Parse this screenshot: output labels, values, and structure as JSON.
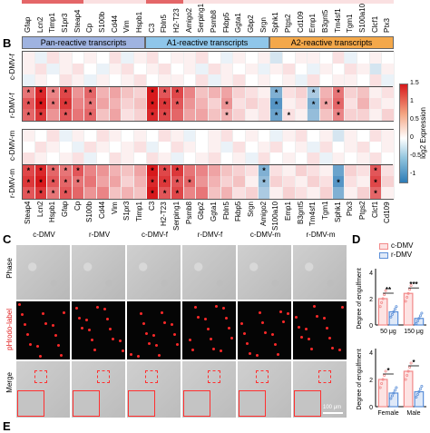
{
  "panel_letters": {
    "b": "B",
    "c": "C",
    "d": "D",
    "e": "E"
  },
  "top_genes": [
    "Gfap",
    "Lcn2",
    "Timp1",
    "S1pr3",
    "Steap4",
    "Cp",
    "S100b",
    "Cd44",
    "Vim",
    "Hspb1",
    "C3",
    "Fbln5",
    "H2-T23",
    "Amigo2",
    "Serping1",
    "Psmb8",
    "Fkbp5",
    "Ggta1",
    "Gbp2",
    "Srgn",
    "Sphk1",
    "Ptgs2",
    "Cd109",
    "Emp1",
    "B3gnt5",
    "Tm4sf1",
    "Tgm1",
    "S100a10",
    "Clcf1",
    "Ptx3"
  ],
  "groups": [
    {
      "label": "Pan-reactive transcripts",
      "color": "#9fb3e0"
    },
    {
      "label": "A1-reactive transcripts",
      "color": "#8fc6ea"
    },
    {
      "label": "A2-reactive transcripts",
      "color": "#f4a84a"
    }
  ],
  "row_labels": {
    "c_dmv_f": "c-DMV-f",
    "r_dmv_f": "r-DMV-f",
    "c_dmv_m": "c-DMV-m",
    "r_dmv_m": "r-DMV-m"
  },
  "bottom_genes": [
    "Steap4",
    "Lcn2",
    "Hspb1",
    "Gfap",
    "Cp",
    "S100b",
    "Cd44",
    "Vim",
    "S1pr3",
    "Timp1",
    "C3",
    "H2-T23",
    "Serping1",
    "Psmb8",
    "Gbp2",
    "Ggta1",
    "Fbln5",
    "Fkbp5",
    "Srgn",
    "Amigo2",
    "S100a10",
    "Emp1",
    "B3gnt5",
    "Tm4sf1",
    "Tgm1",
    "Sphk1",
    "Ptx3",
    "Ptgs2",
    "Clcf1",
    "Cd109"
  ],
  "colorbar": {
    "title": "log2 Expression",
    "ticks": [
      "1.5",
      "1",
      "0.5",
      "0",
      "-0.5",
      "-1"
    ]
  },
  "star": "*",
  "heatmap_f": [
    [
      0.1,
      -0.1,
      0.2,
      0.1,
      0.0,
      0.1,
      0.0,
      0.2,
      -0.1,
      0.1,
      0.2,
      0.0,
      0.1,
      0.1,
      0.2,
      0.0,
      -0.1,
      0.1,
      0.0,
      0.1,
      -0.2,
      0.0,
      0.1,
      0.1,
      0.0,
      0.2,
      -0.1,
      0.0,
      0.1,
      0.0
    ],
    [
      0.1,
      0.2,
      -0.1,
      0.1,
      0.2,
      0.0,
      -0.1,
      0.1,
      0.2,
      0.0,
      0.1,
      0.2,
      0.0,
      0.1,
      -0.1,
      0.2,
      0.1,
      0.0,
      0.1,
      -0.1,
      0.1,
      0.2,
      0.0,
      -0.1,
      0.1,
      0.0,
      0.2,
      0.1,
      -0.2,
      0.1
    ],
    [
      -0.1,
      0.1,
      0.0,
      0.2,
      0.1,
      -0.1,
      0.1,
      0.0,
      0.1,
      0.2,
      0.0,
      0.1,
      0.1,
      0.0,
      0.2,
      -0.1,
      0.1,
      0.2,
      0.0,
      0.1,
      0.0,
      0.1,
      -0.1,
      0.2,
      0.0,
      0.1,
      0.1,
      0.0,
      0.2,
      -0.1
    ],
    [
      0.9,
      1.4,
      0.8,
      1.2,
      0.7,
      1.0,
      0.5,
      0.6,
      0.4,
      0.3,
      1.5,
      1.1,
      1.2,
      0.8,
      0.4,
      0.5,
      0.6,
      0.3,
      0.2,
      0.1,
      -0.6,
      0.2,
      0.3,
      -0.4,
      0.5,
      0.9,
      0.3,
      0.4,
      0.1,
      0.2
    ],
    [
      1.1,
      1.5,
      0.9,
      1.3,
      0.8,
      0.9,
      0.6,
      0.5,
      0.3,
      0.4,
      1.5,
      1.3,
      1.1,
      0.7,
      0.5,
      0.3,
      0.7,
      0.2,
      0.3,
      0.2,
      -0.8,
      0.1,
      0.2,
      -0.6,
      0.6,
      1.0,
      0.2,
      0.5,
      0.2,
      0.1
    ],
    [
      1.0,
      1.3,
      0.7,
      1.1,
      0.9,
      1.0,
      0.4,
      0.6,
      0.2,
      0.3,
      1.4,
      1.2,
      1.0,
      0.6,
      0.6,
      0.4,
      0.5,
      0.3,
      0.1,
      0.2,
      -0.7,
      0.2,
      0.1,
      -0.5,
      0.4,
      0.8,
      0.3,
      0.3,
      0.1,
      0.3
    ]
  ],
  "stars_f": [
    [
      3,
      0
    ],
    [
      3,
      1
    ],
    [
      3,
      2
    ],
    [
      3,
      3
    ],
    [
      3,
      5
    ],
    [
      3,
      10
    ],
    [
      3,
      11
    ],
    [
      3,
      12
    ],
    [
      3,
      20
    ],
    [
      3,
      23
    ],
    [
      3,
      25
    ],
    [
      4,
      0
    ],
    [
      4,
      1
    ],
    [
      4,
      2
    ],
    [
      4,
      3
    ],
    [
      4,
      5
    ],
    [
      4,
      10
    ],
    [
      4,
      11
    ],
    [
      4,
      12
    ],
    [
      4,
      16
    ],
    [
      4,
      20
    ],
    [
      4,
      23
    ],
    [
      4,
      24
    ],
    [
      4,
      25
    ],
    [
      5,
      0
    ],
    [
      5,
      1
    ],
    [
      5,
      3
    ],
    [
      5,
      5
    ],
    [
      5,
      10
    ],
    [
      5,
      11
    ],
    [
      5,
      16
    ],
    [
      5,
      20
    ],
    [
      5,
      21
    ],
    [
      5,
      25
    ]
  ],
  "heatmap_m": [
    [
      0.1,
      0.0,
      0.2,
      -0.1,
      0.1,
      0.0,
      0.2,
      0.1,
      0.0,
      0.1,
      0.0,
      0.2,
      0.1,
      -0.1,
      0.0,
      0.1,
      0.2,
      0.0,
      0.1,
      0.0,
      -0.1,
      0.1,
      0.2,
      0.0,
      0.1,
      -0.2,
      0.1,
      0.0,
      0.2,
      0.1
    ],
    [
      0.0,
      0.2,
      0.1,
      0.0,
      -0.1,
      0.2,
      0.1,
      0.0,
      0.1,
      0.2,
      -0.1,
      0.0,
      0.2,
      0.1,
      0.0,
      0.1,
      -0.1,
      0.2,
      0.0,
      0.1,
      0.2,
      0.0,
      0.1,
      -0.1,
      0.2,
      0.0,
      0.1,
      0.2,
      0.0,
      0.1
    ],
    [
      0.2,
      0.1,
      0.0,
      0.1,
      0.2,
      -0.1,
      0.0,
      0.2,
      0.1,
      0.0,
      0.2,
      0.1,
      -0.1,
      0.0,
      0.1,
      0.2,
      0.0,
      0.1,
      -0.1,
      0.2,
      0.0,
      0.1,
      0.0,
      0.2,
      -0.1,
      0.1,
      0.0,
      0.1,
      0.2,
      0.0
    ],
    [
      1.2,
      1.4,
      1.0,
      0.9,
      1.1,
      0.8,
      0.7,
      0.5,
      0.4,
      0.6,
      1.5,
      1.2,
      1.3,
      0.9,
      0.8,
      0.6,
      0.4,
      0.3,
      0.2,
      -0.6,
      0.2,
      0.1,
      0.3,
      0.2,
      0.1,
      -0.7,
      0.3,
      0.2,
      1.1,
      0.2
    ],
    [
      1.3,
      1.5,
      1.1,
      1.0,
      0.9,
      0.9,
      0.6,
      0.6,
      0.3,
      0.5,
      1.4,
      1.3,
      1.1,
      1.0,
      0.7,
      0.5,
      0.3,
      0.4,
      0.1,
      -0.5,
      0.3,
      0.2,
      0.1,
      0.3,
      0.2,
      -0.8,
      0.2,
      0.1,
      1.2,
      0.3
    ],
    [
      1.1,
      1.3,
      0.9,
      1.1,
      1.0,
      0.7,
      0.8,
      0.4,
      0.5,
      0.4,
      1.5,
      1.1,
      1.2,
      0.8,
      0.9,
      0.4,
      0.5,
      0.2,
      0.3,
      -0.4,
      0.1,
      0.3,
      0.2,
      0.1,
      0.3,
      -0.6,
      0.1,
      0.3,
      1.0,
      0.1
    ]
  ],
  "stars_m": [
    [
      3,
      0
    ],
    [
      3,
      1
    ],
    [
      3,
      2
    ],
    [
      3,
      3
    ],
    [
      3,
      4
    ],
    [
      3,
      10
    ],
    [
      3,
      11
    ],
    [
      3,
      12
    ],
    [
      3,
      19
    ],
    [
      3,
      28
    ],
    [
      4,
      0
    ],
    [
      4,
      1
    ],
    [
      4,
      2
    ],
    [
      4,
      3
    ],
    [
      4,
      4
    ],
    [
      4,
      10
    ],
    [
      4,
      11
    ],
    [
      4,
      12
    ],
    [
      4,
      13
    ],
    [
      4,
      19
    ],
    [
      4,
      25
    ],
    [
      4,
      28
    ],
    [
      5,
      0
    ],
    [
      5,
      1
    ],
    [
      5,
      2
    ],
    [
      5,
      3
    ],
    [
      5,
      10
    ],
    [
      5,
      11
    ],
    [
      5,
      12
    ],
    [
      5,
      28
    ]
  ],
  "micro_columns": [
    "c-DMV",
    "r-DMV",
    "c-DMV-f",
    "r-DMV-f",
    "c-DMV-m",
    "r-DMV-m"
  ],
  "micro_rows": [
    "Phase",
    "pHrodo-label",
    "Merge"
  ],
  "scale_bar": "100 μm",
  "legend": [
    {
      "label": "c-DMV",
      "color": "#f28a8a"
    },
    {
      "label": "r-DMV",
      "color": "#5b8fd8"
    }
  ],
  "d_top": {
    "ylabel": "Degree of engulfment",
    "categories": [
      "50 μg",
      "150 μg"
    ],
    "sig": [
      "**",
      "***"
    ],
    "ticks": [
      "0",
      "2",
      "4"
    ],
    "values": {
      "c": [
        2.0,
        2.4
      ],
      "r": [
        1.0,
        0.5
      ]
    }
  },
  "d_bottom": {
    "ylabel": "Degree of engulfment",
    "categories": [
      "Female",
      "Male"
    ],
    "sig": [
      "*",
      "*"
    ],
    "ticks": [
      "0",
      "2",
      "4"
    ],
    "values": {
      "c": [
        2.0,
        2.6
      ],
      "r": [
        1.0,
        1.1
      ]
    }
  }
}
